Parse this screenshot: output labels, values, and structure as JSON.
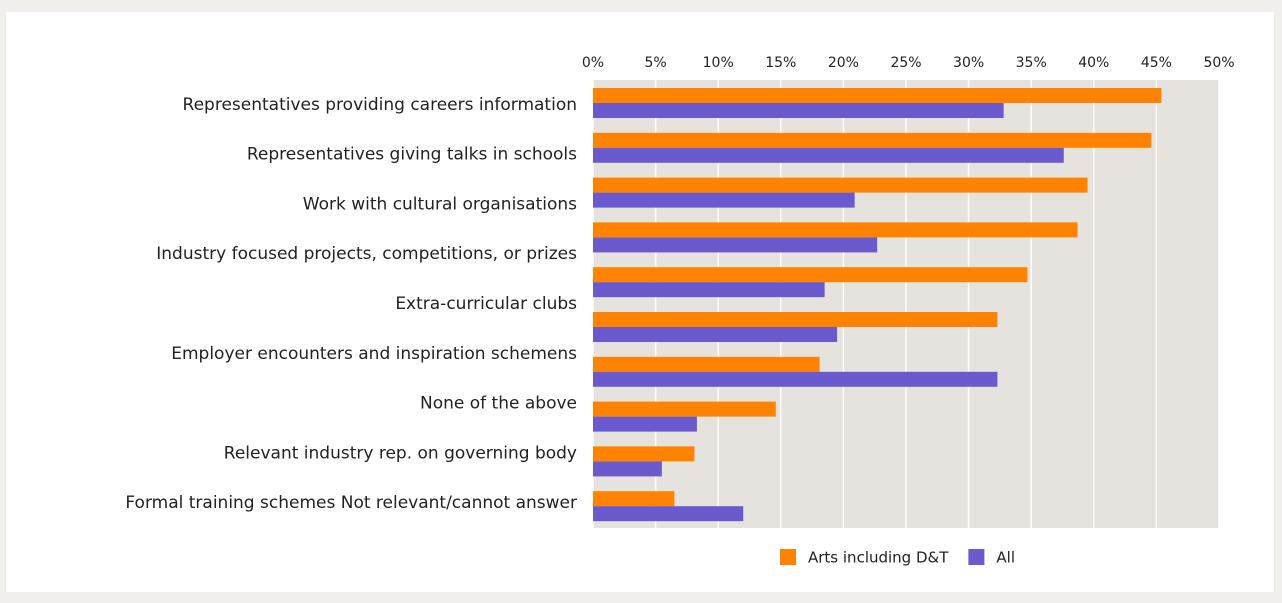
{
  "chart_data": {
    "type": "hbar",
    "categories": [
      "Representatives providing careers information",
      "Representatives giving talks in schools",
      "Work with cultural organisations",
      "Industry focused projects, competitions, or prizes",
      "Extra-curricular clubs",
      "Employer encounters and inspiration schemens",
      "None of the above",
      "Relevant industry rep. on governing body",
      "Formal training schemes Not relevant/cannot answer",
      null
    ],
    "series": [
      {
        "name": "Arts including D&T",
        "color": "#ff8200",
        "values": [
          45.4,
          44.6,
          39.5,
          38.7,
          34.7,
          32.3,
          18.1,
          14.6,
          8.1,
          6.5
        ]
      },
      {
        "name": "All",
        "color": "#6a5acd",
        "values": [
          32.8,
          37.6,
          20.9,
          22.7,
          18.5,
          19.5,
          32.3,
          8.3,
          5.5,
          12.0
        ]
      }
    ],
    "xlim": [
      0,
      50
    ],
    "xticks": [
      {
        "value": 0,
        "label": "0%"
      },
      {
        "value": 5,
        "label": "5%"
      },
      {
        "value": 10,
        "label": "10%"
      },
      {
        "value": 15,
        "label": "15%"
      },
      {
        "value": 20,
        "label": "20%"
      },
      {
        "value": 25,
        "label": "25%"
      },
      {
        "value": 30,
        "label": "30%"
      },
      {
        "value": 35,
        "label": "35%"
      },
      {
        "value": 40,
        "label": "40%"
      },
      {
        "value": 45,
        "label": "45%"
      },
      {
        "value": 50,
        "label": "50%"
      }
    ],
    "grid": true,
    "legend": "bottom"
  }
}
